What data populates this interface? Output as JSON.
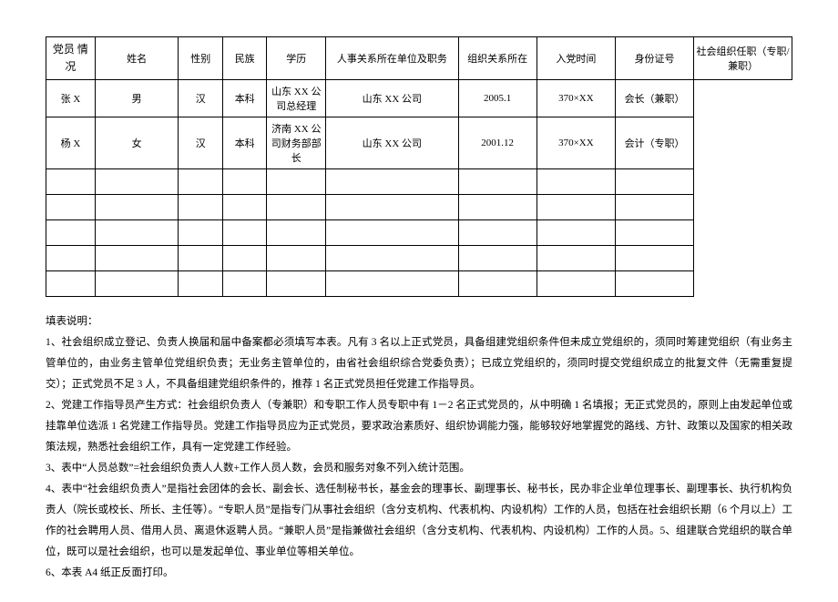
{
  "table": {
    "rowLabel": "党员\n情况",
    "headers": {
      "name": "姓名",
      "sex": "性别",
      "ethnicity": "民族",
      "education": "学历",
      "position": "人事关系所在单位及职务",
      "orgRelation": "组织关系所在",
      "joinDate": "入党时间",
      "idNumber": "身份证号",
      "orgRole": "社会组织任职（专职/兼职）"
    },
    "rows": [
      {
        "name": "张 X",
        "sex": "男",
        "ethnicity": "汉",
        "education": "本科",
        "position": "山东 XX 公司总经理",
        "orgRelation": "山东 XX 公司",
        "joinDate": "2005.1",
        "idNumber": "370×XX",
        "orgRole": "会长（兼职）"
      },
      {
        "name": "杨 X",
        "sex": "女",
        "ethnicity": "汉",
        "education": "本科",
        "position": "济南 XX 公司财务部部长",
        "orgRelation": "山东 XX 公司",
        "joinDate": "2001.12",
        "idNumber": "370×XX",
        "orgRole": "会计（专职）"
      },
      {
        "name": "",
        "sex": "",
        "ethnicity": "",
        "education": "",
        "position": "",
        "orgRelation": "",
        "joinDate": "",
        "idNumber": "",
        "orgRole": ""
      },
      {
        "name": "",
        "sex": "",
        "ethnicity": "",
        "education": "",
        "position": "",
        "orgRelation": "",
        "joinDate": "",
        "idNumber": "",
        "orgRole": ""
      },
      {
        "name": "",
        "sex": "",
        "ethnicity": "",
        "education": "",
        "position": "",
        "orgRelation": "",
        "joinDate": "",
        "idNumber": "",
        "orgRole": ""
      },
      {
        "name": "",
        "sex": "",
        "ethnicity": "",
        "education": "",
        "position": "",
        "orgRelation": "",
        "joinDate": "",
        "idNumber": "",
        "orgRole": ""
      },
      {
        "name": "",
        "sex": "",
        "ethnicity": "",
        "education": "",
        "position": "",
        "orgRelation": "",
        "joinDate": "",
        "idNumber": "",
        "orgRole": ""
      }
    ]
  },
  "notes": {
    "title": "填表说明：",
    "items": [
      "1、社会组织成立登记、负责人换届和届中备案都必须填写本表。凡有 3 名以上正式党员，具备组建党组织条件但未成立党组织的，须同时筹建党组织（有业务主管单位的，由业务主管单位党组织负责；无业务主管单位的，由省社会组织综合党委负责）；已成立党组织的，须同时提交党组织成立的批复文件（无需重复提交）；正式党员不足 3 人，不具备组建党组织条件的，推荐 1 名正式党员担任党建工作指导员。",
      "2、党建工作指导员产生方式：社会组织负责人（专兼职）和专职工作人员专职中有 1－2 名正式党员的，从中明确 1 名填报；无正式党员的，原则上由发起单位或挂靠单位选派 1 名党建工作指导员。党建工作指导员应为正式党员，要求政治素质好、组织协调能力强，能够较好地掌握党的路线、方针、政策以及国家的相关政策法规，熟悉社会组织工作，具有一定党建工作经验。",
      "3、表中“人员总数”=社会组织负责人人数+工作人员人数，会员和服务对象不列入统计范围。",
      "4、表中“社会组织负责人”是指社会团体的会长、副会长、选任制秘书长，基金会的理事长、副理事长、秘书长，民办非企业单位理事长、副理事长、执行机构负责人（院长或校长、所长、主任等）。“专职人员”是指专门从事社会组织（含分支机构、代表机构、内设机构）工作的人员，包括在社会组织长期（6 个月以上）工作的社会聘用人员、借用人员、离退休返聘人员。“兼职人员”是指兼做社会组织（含分支机构、代表机构、内设机构）工作的人员。5、组建联合党组织的联合单位，既可以是社会组织，也可以是发起单位、事业单位等相关单位。",
      "6、本表 A4 纸正反面打印。"
    ]
  }
}
